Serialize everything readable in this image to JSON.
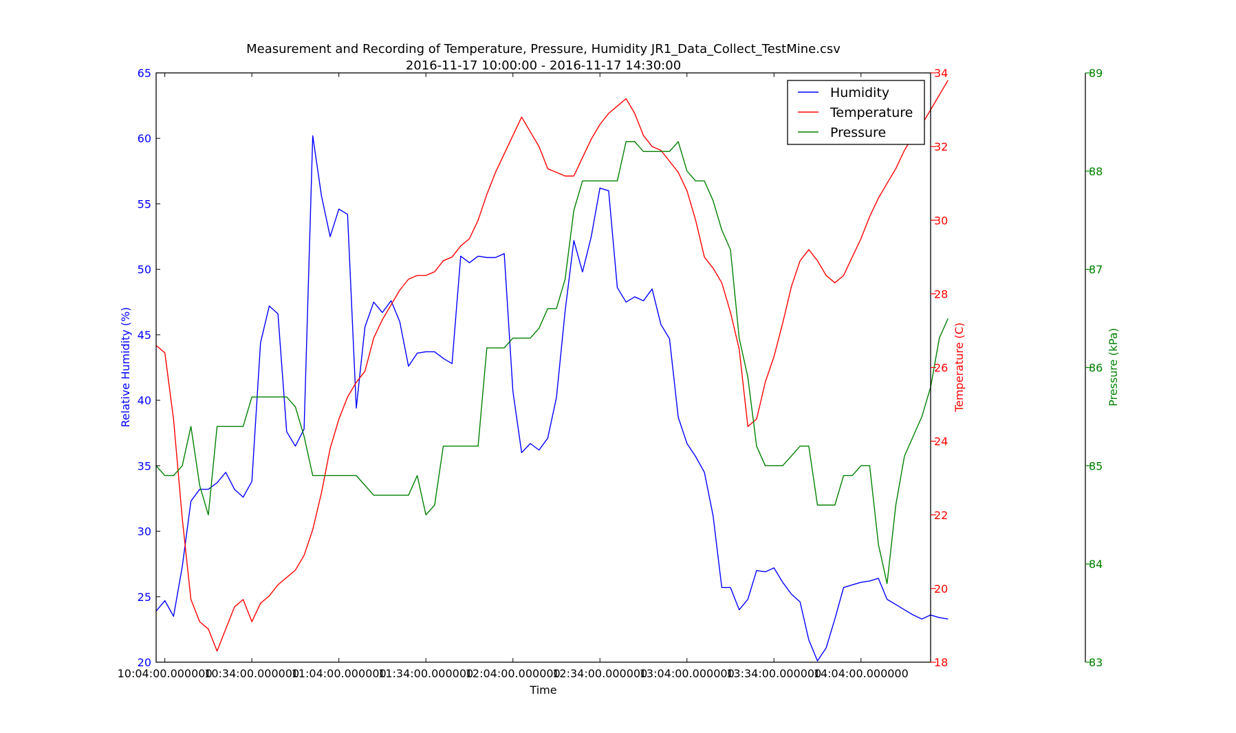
{
  "chart_data": {
    "type": "line",
    "title": "Measurement and Recording of Temperature, Pressure, Humidity JR1_Data_Collect_TestMine.csv",
    "subtitle": "2016-11-17 10:00:00 - 2016-11-17 14:30:00",
    "xlabel": "Time",
    "x_ticks": [
      "10:04:00.000000",
      "10:34:00.000000",
      "11:04:00.000000",
      "11:34:00.000000",
      "12:04:00.000000",
      "12:34:00.000000",
      "13:04:00.000000",
      "13:34:00.000000",
      "14:04:00.000000"
    ],
    "x_tick_minutes": [
      4,
      34,
      64,
      94,
      124,
      154,
      184,
      214,
      244
    ],
    "x_range_minutes": [
      1,
      268
    ],
    "sample_interval_minutes": 3,
    "legend_placement": "top-right",
    "grid": false,
    "axes": [
      {
        "id": "humidity",
        "label": "Relative Humidity (%)",
        "side": "left",
        "ylim": [
          20,
          65
        ],
        "ticks": [
          20,
          25,
          30,
          35,
          40,
          45,
          50,
          55,
          60,
          65
        ],
        "color": "#0000ff"
      },
      {
        "id": "temperature",
        "label": "Temperature (C)",
        "side": "right",
        "ylim": [
          18,
          34
        ],
        "ticks": [
          18,
          20,
          22,
          24,
          26,
          28,
          30,
          32,
          34
        ],
        "color": "#ff0000"
      },
      {
        "id": "pressure",
        "label": "Pressure (kPa)",
        "side": "right-outer",
        "ylim": [
          83,
          89
        ],
        "ticks": [
          83,
          84,
          85,
          86,
          87,
          88,
          89
        ],
        "color": "#008000"
      }
    ],
    "series": [
      {
        "name": "Humidity",
        "axis": "humidity",
        "color": "#0000ff",
        "values": [
          23.9,
          24.7,
          23.5,
          27.3,
          32.3,
          33.2,
          33.2,
          33.7,
          34.5,
          33.2,
          32.6,
          33.8,
          44.4,
          47.2,
          46.6,
          37.6,
          36.5,
          37.8,
          60.2,
          55.6,
          52.5,
          54.6,
          54.2,
          39.4,
          45.6,
          47.5,
          46.7,
          47.6,
          46.0,
          42.6,
          43.6,
          43.7,
          43.7,
          43.2,
          42.8,
          51.0,
          50.5,
          51.0,
          50.9,
          50.9,
          51.2,
          40.7,
          36.0,
          36.7,
          36.2,
          37.1,
          40.2,
          46.8,
          52.2,
          49.8,
          52.5,
          56.2,
          56.0,
          48.6,
          47.5,
          47.9,
          47.6,
          48.5,
          45.8,
          44.7,
          38.7,
          36.7,
          35.7,
          34.5,
          31.2,
          25.7,
          25.7,
          24.0,
          24.8,
          27.0,
          26.9,
          27.2,
          26.1,
          25.2,
          24.6,
          21.7,
          20.1,
          21.1,
          23.3,
          25.7,
          25.9,
          26.1,
          26.2,
          26.4,
          24.8,
          24.4,
          24.0,
          23.6,
          23.3,
          23.6,
          23.4,
          23.3
        ]
      },
      {
        "name": "Temperature",
        "axis": "temperature",
        "color": "#ff0000",
        "values": [
          26.6,
          26.4,
          24.6,
          21.9,
          19.7,
          19.1,
          18.9,
          18.3,
          18.9,
          19.5,
          19.7,
          19.1,
          19.6,
          19.8,
          20.1,
          20.3,
          20.5,
          20.9,
          21.6,
          22.6,
          23.8,
          24.6,
          25.2,
          25.6,
          25.9,
          26.8,
          27.3,
          27.7,
          28.1,
          28.4,
          28.5,
          28.5,
          28.6,
          28.9,
          29.0,
          29.3,
          29.5,
          30.0,
          30.7,
          31.3,
          31.8,
          32.3,
          32.8,
          32.4,
          32.0,
          31.4,
          31.3,
          31.2,
          31.2,
          31.7,
          32.2,
          32.6,
          32.9,
          33.1,
          33.3,
          32.9,
          32.3,
          32.0,
          31.9,
          31.6,
          31.3,
          30.8,
          30.0,
          29.0,
          28.7,
          28.3,
          27.5,
          26.5,
          24.4,
          24.6,
          25.6,
          26.3,
          27.2,
          28.2,
          28.9,
          29.2,
          28.9,
          28.5,
          28.3,
          28.5,
          29.0,
          29.5,
          30.1,
          30.6,
          31.0,
          31.4,
          31.9,
          32.3,
          32.6,
          33.0,
          33.4,
          33.8
        ]
      },
      {
        "name": "Pressure",
        "axis": "pressure",
        "color": "#008000",
        "values": [
          85.0,
          84.9,
          84.9,
          85.0,
          85.4,
          84.8,
          84.5,
          85.4,
          85.4,
          85.4,
          85.4,
          85.7,
          85.7,
          85.7,
          85.7,
          85.7,
          85.6,
          85.3,
          84.9,
          84.9,
          84.9,
          84.9,
          84.9,
          84.9,
          84.8,
          84.7,
          84.7,
          84.7,
          84.7,
          84.7,
          84.9,
          84.5,
          84.6,
          85.2,
          85.2,
          85.2,
          85.2,
          85.2,
          86.2,
          86.2,
          86.2,
          86.3,
          86.3,
          86.3,
          86.4,
          86.6,
          86.6,
          86.9,
          87.6,
          87.9,
          87.9,
          87.9,
          87.9,
          87.9,
          88.3,
          88.3,
          88.2,
          88.2,
          88.2,
          88.2,
          88.3,
          88.0,
          87.9,
          87.9,
          87.7,
          87.4,
          87.2,
          86.3,
          85.9,
          85.2,
          85.0,
          85.0,
          85.0,
          85.1,
          85.2,
          85.2,
          84.6,
          84.6,
          84.6,
          84.9,
          84.9,
          85.0,
          85.0,
          84.2,
          83.8,
          84.6,
          85.1,
          85.3,
          85.5,
          85.8,
          86.3,
          86.5
        ]
      }
    ]
  }
}
